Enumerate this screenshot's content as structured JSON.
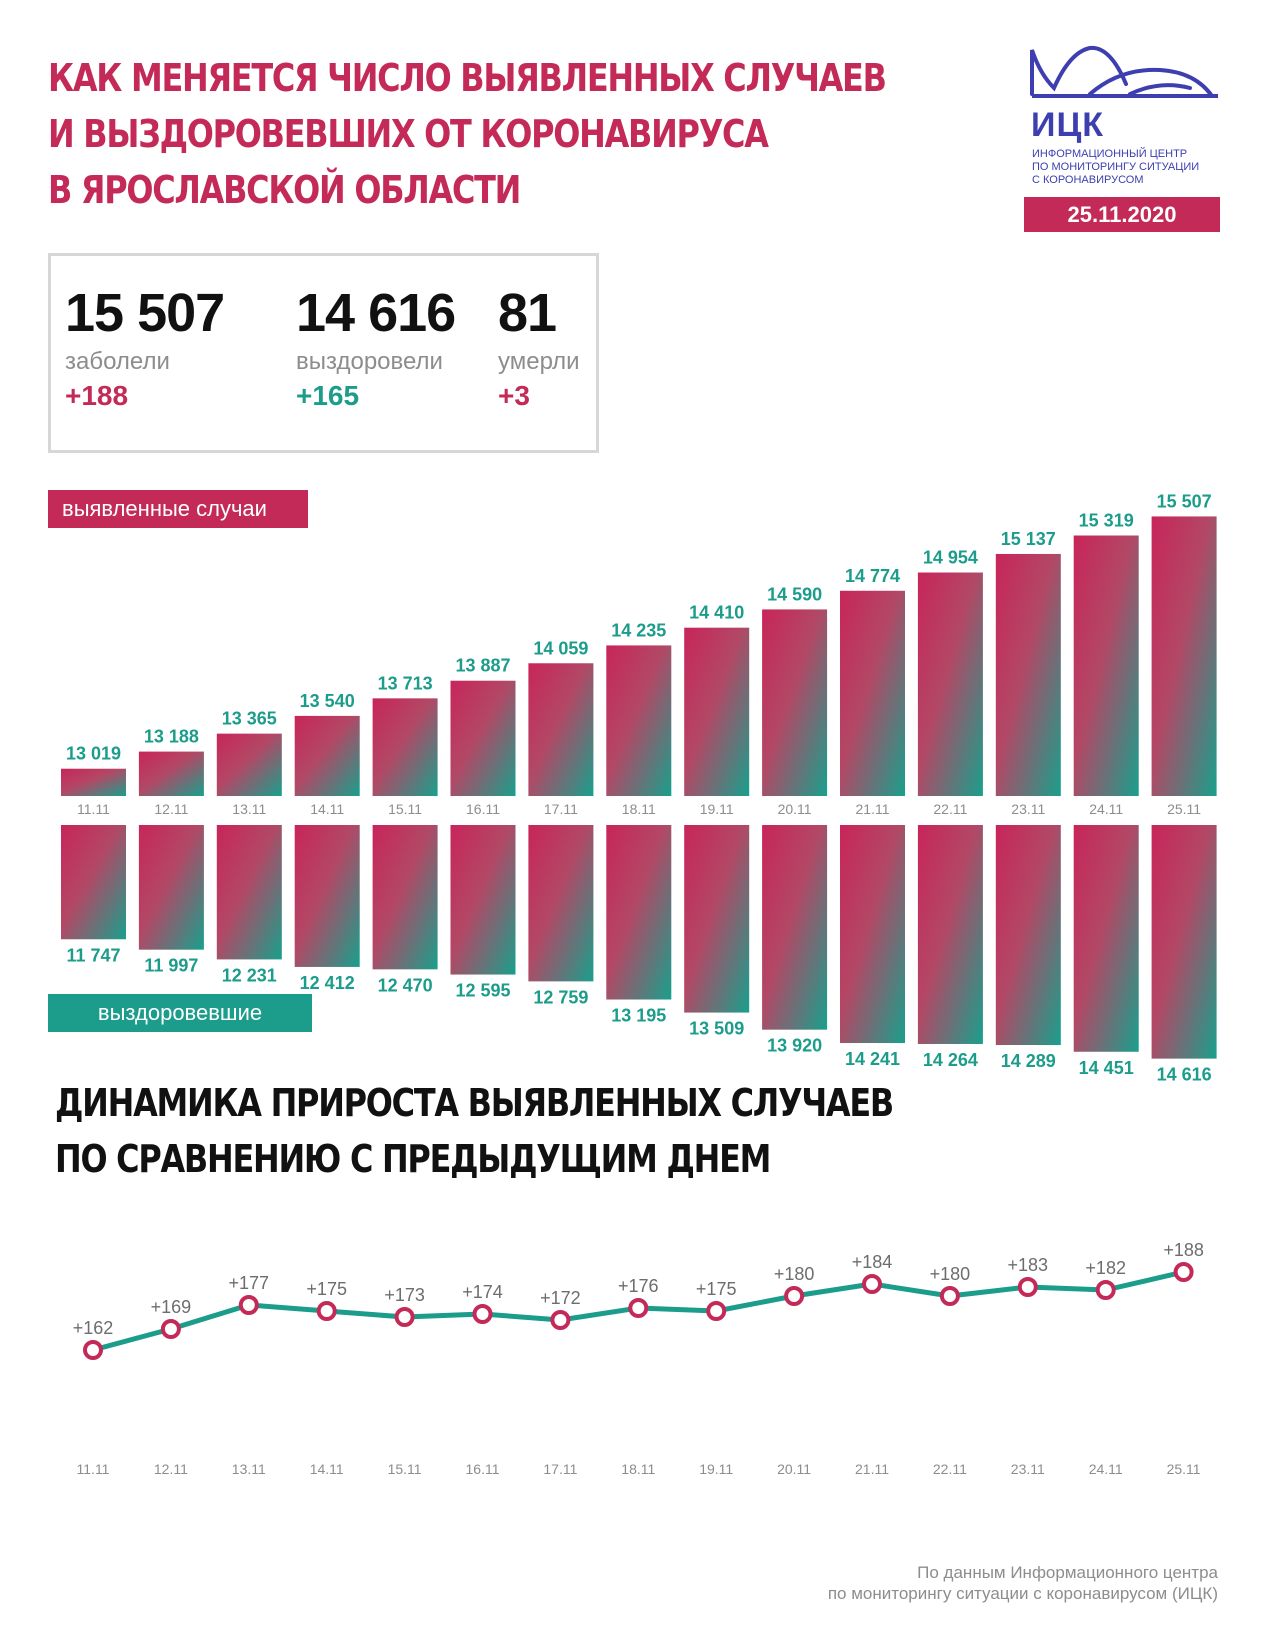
{
  "header": {
    "title_lines": [
      "КАК МЕНЯЕТСЯ ЧИСЛО ВЫЯВЛЕННЫХ СЛУЧАЕВ",
      "И ВЫЗДОРОВЕВШИХ ОТ КОРОНАВИРУСА",
      "В ЯРОСЛАВСКОЙ ОБЛАСТИ"
    ]
  },
  "logo": {
    "name": "ИЦК",
    "subtitle_lines": [
      "ИНФОРМАЦИОННЫЙ ЦЕНТР",
      "ПО МОНИТОРИНГУ СИТУАЦИИ",
      "С КОРОНАВИРУСОМ"
    ],
    "color": "#3d3fb0",
    "icon": "mountain-arc-logo-icon"
  },
  "date": "25.11.2020",
  "summary": {
    "infected": {
      "value": "15 507",
      "label": "заболели",
      "delta": "+188"
    },
    "recovered": {
      "value": "14 616",
      "label": "выздоровели",
      "delta": "+165"
    },
    "died": {
      "value": "81",
      "label": "умерли",
      "delta": "+3"
    }
  },
  "legend": {
    "cases_label": "выявленные случаи",
    "recovered_label": "выздоровевшие"
  },
  "section2": {
    "title_lines": [
      "ДИНАМИКА ПРИРОСТА ВЫЯВЛЕННЫХ СЛУЧАЕВ",
      "ПО СРАВНЕНИЮ С ПРЕДЫДУЩИМ ДНЕМ"
    ]
  },
  "footer": {
    "lines": [
      "По данным Информационного центра",
      "по мониторингу ситуации с коронавирусом (ИЦК)"
    ]
  },
  "colors": {
    "accent": "#c42a58",
    "teal": "#1c9c8b",
    "tick": "#8d8d8d",
    "logo": "#3d3fb0"
  },
  "chart_data": [
    {
      "type": "bar",
      "categories": [
        "11.11",
        "12.11",
        "13.11",
        "14.11",
        "15.11",
        "16.11",
        "17.11",
        "18.11",
        "19.11",
        "20.11",
        "21.11",
        "22.11",
        "23.11",
        "24.11",
        "25.11"
      ],
      "series": [
        {
          "name": "выявленные случаи",
          "values": [
            13019,
            13188,
            13365,
            13540,
            13713,
            13887,
            14059,
            14235,
            14410,
            14590,
            14774,
            14954,
            15137,
            15319,
            15507
          ],
          "labels": [
            "13 019",
            "13 188",
            "13 365",
            "13 540",
            "13 713",
            "13 887",
            "14 059",
            "14 235",
            "14 410",
            "14 590",
            "14 774",
            "14 954",
            "15 137",
            "15 319",
            "15 507"
          ]
        },
        {
          "name": "выздоровевшие",
          "values": [
            11747,
            11997,
            12231,
            12412,
            12470,
            12595,
            12759,
            13195,
            13509,
            13920,
            14241,
            14264,
            14289,
            14451,
            14616
          ],
          "labels": [
            "11 747",
            "11 997",
            "12 231",
            "12 412",
            "12 470",
            "12 595",
            "12 759",
            "13 195",
            "13 509",
            "13 920",
            "14 241",
            "14 264",
            "14 289",
            "14 451",
            "14 616"
          ]
        }
      ]
    },
    {
      "type": "line",
      "x": [
        "11.11",
        "12.11",
        "13.11",
        "14.11",
        "15.11",
        "16.11",
        "17.11",
        "18.11",
        "19.11",
        "20.11",
        "21.11",
        "22.11",
        "23.11",
        "24.11",
        "25.11"
      ],
      "values": [
        162,
        169,
        177,
        175,
        173,
        174,
        172,
        176,
        175,
        180,
        184,
        180,
        183,
        182,
        188
      ],
      "labels": [
        "+162",
        "+169",
        "+177",
        "+175",
        "+173",
        "+174",
        "+172",
        "+176",
        "+175",
        "+180",
        "+184",
        "+180",
        "+183",
        "+182",
        "+188"
      ]
    }
  ]
}
